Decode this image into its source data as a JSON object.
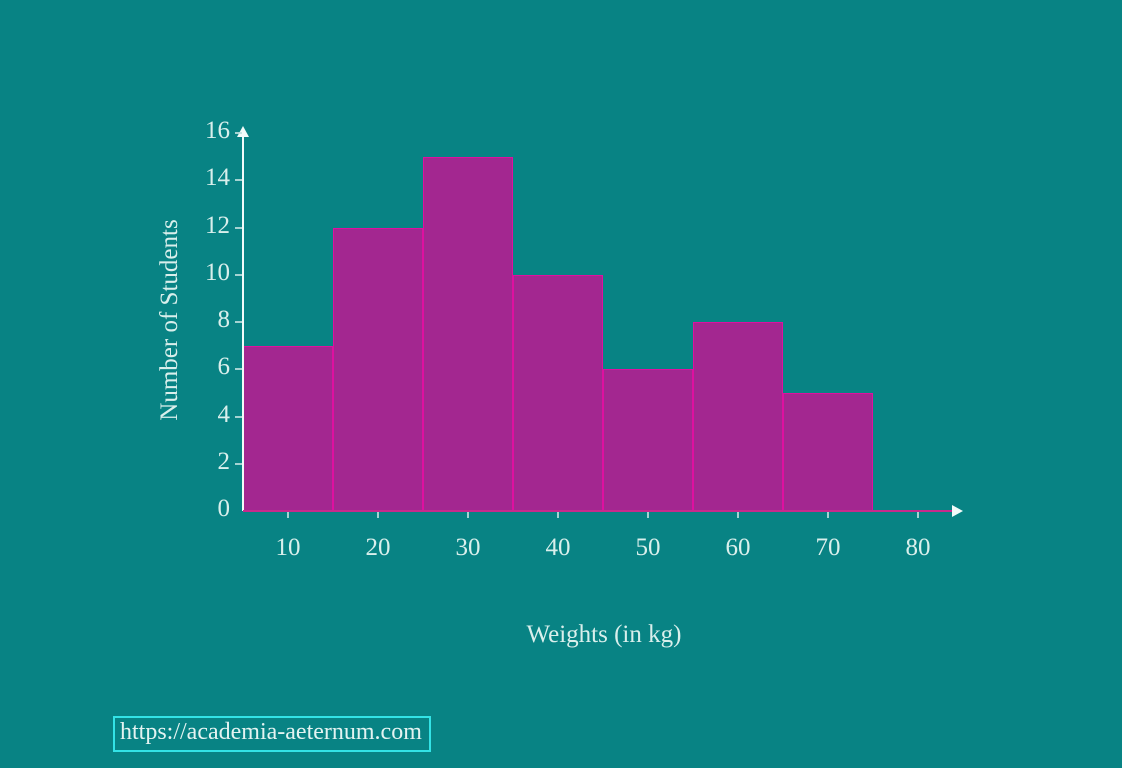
{
  "chart_data": {
    "type": "bar",
    "subtype": "histogram",
    "title": "",
    "xlabel": "Weights (in kg)",
    "ylabel": "Number of Students",
    "bin_starts": [
      5,
      15,
      25,
      35,
      45,
      55,
      65
    ],
    "bin_width": 10,
    "values": [
      7,
      12,
      15,
      10,
      6,
      8,
      5
    ],
    "bins": [
      {
        "range": "5-15",
        "value": 7
      },
      {
        "range": "15-25",
        "value": 12
      },
      {
        "range": "25-35",
        "value": 15
      },
      {
        "range": "35-45",
        "value": 10
      },
      {
        "range": "45-55",
        "value": 6
      },
      {
        "range": "55-65",
        "value": 8
      },
      {
        "range": "65-75",
        "value": 5
      }
    ],
    "x_ticks": [
      10,
      20,
      30,
      40,
      50,
      60,
      70,
      80
    ],
    "y_ticks": [
      0,
      2,
      4,
      6,
      8,
      10,
      12,
      14,
      16
    ],
    "xlim": [
      5,
      85
    ],
    "ylim": [
      0,
      16
    ],
    "grid": false,
    "legend": "none",
    "colors": {
      "background": "#088384",
      "bar_fill": "#a32790",
      "bar_edge": "#de10a0",
      "x_axis": "#c72a8c",
      "y_axis": "#f2fbfa",
      "text": "#d9efec",
      "watermark_border": "#33e3e6"
    }
  },
  "watermark": {
    "url": "https://academia-aeternum.com"
  }
}
